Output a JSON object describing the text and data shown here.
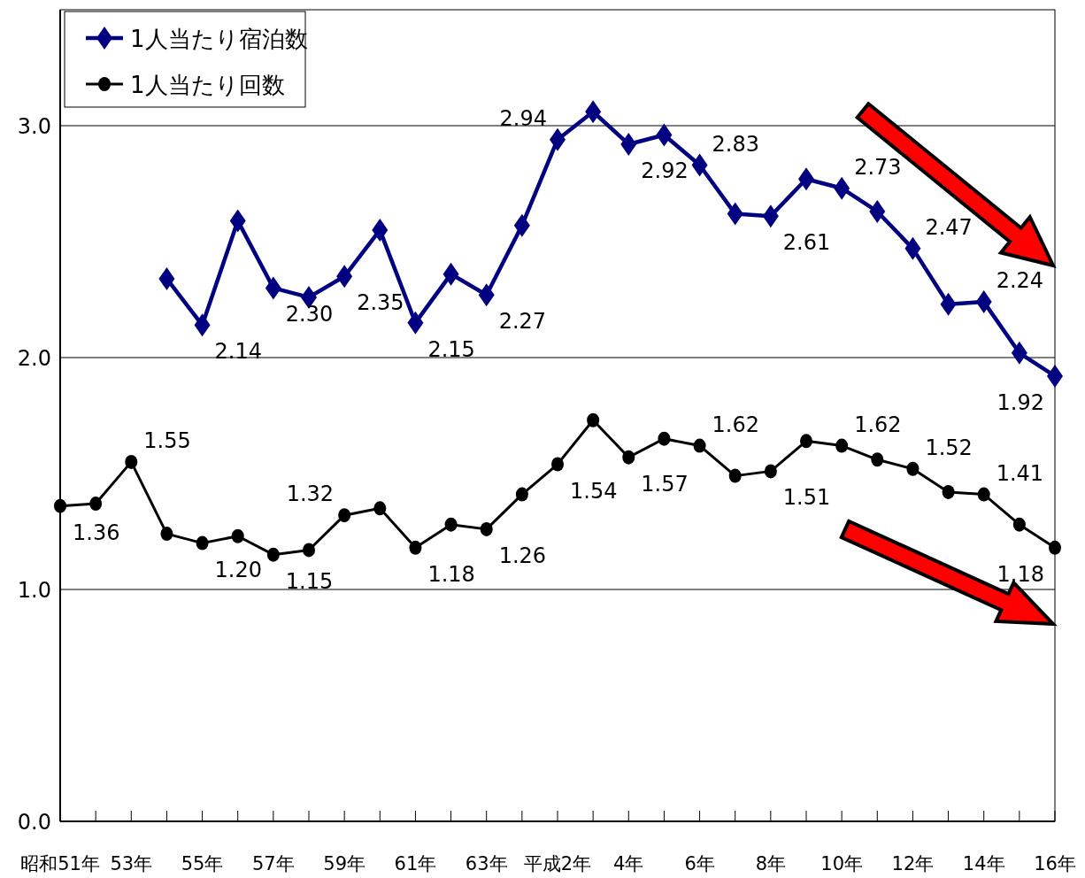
{
  "chart_data": {
    "type": "line",
    "categories": [
      "昭和51年",
      null,
      "53年",
      null,
      "55年",
      null,
      "57年",
      null,
      "59年",
      null,
      "61年",
      null,
      "63年",
      null,
      "平成2年",
      null,
      "4年",
      null,
      "6年",
      null,
      "8年",
      null,
      "10年",
      null,
      "12年",
      null,
      "14年",
      null,
      "16年"
    ],
    "ylim": [
      0,
      3.5
    ],
    "yticks": [
      {
        "value": 0,
        "label": "0.0"
      },
      {
        "value": 1,
        "label": "1.0"
      },
      {
        "value": 2,
        "label": "2.0"
      },
      {
        "value": 3,
        "label": "3.0"
      }
    ],
    "grid": "y",
    "legend": "top left",
    "series": [
      {
        "name": "1人当たり宿泊数",
        "color": "#000080",
        "marker": "diamond",
        "values": [
          null,
          null,
          null,
          2.34,
          2.14,
          2.59,
          2.3,
          2.26,
          2.35,
          2.55,
          2.15,
          2.36,
          2.27,
          2.57,
          2.94,
          3.06,
          2.92,
          2.96,
          2.83,
          2.62,
          2.61,
          2.77,
          2.73,
          2.63,
          2.47,
          2.23,
          2.24,
          2.02,
          1.92
        ],
        "value_labels": [
          null,
          null,
          null,
          null,
          "2.14",
          null,
          "2.30",
          null,
          "2.35",
          null,
          "2.15",
          null,
          "2.27",
          null,
          "2.94",
          null,
          "2.92",
          null,
          "2.83",
          null,
          "2.61",
          null,
          "2.73",
          null,
          "2.47",
          null,
          "2.24",
          null,
          "1.92"
        ]
      },
      {
        "name": "1人当たり回数",
        "color": "#000000",
        "marker": "circle",
        "values": [
          1.36,
          1.37,
          1.55,
          1.24,
          1.2,
          1.23,
          1.15,
          1.17,
          1.32,
          1.35,
          1.18,
          1.28,
          1.26,
          1.41,
          1.54,
          1.73,
          1.57,
          1.65,
          1.62,
          1.49,
          1.51,
          1.64,
          1.62,
          1.56,
          1.52,
          1.42,
          1.41,
          1.28,
          1.18
        ],
        "value_labels": [
          "1.36",
          null,
          "1.55",
          null,
          "1.20",
          null,
          "1.15",
          null,
          "1.32",
          null,
          "1.18",
          null,
          "1.26",
          null,
          "1.54",
          null,
          "1.57",
          null,
          "1.62",
          null,
          "1.51",
          null,
          "1.62",
          null,
          "1.52",
          null,
          "1.41",
          null,
          "1.18"
        ]
      }
    ]
  }
}
